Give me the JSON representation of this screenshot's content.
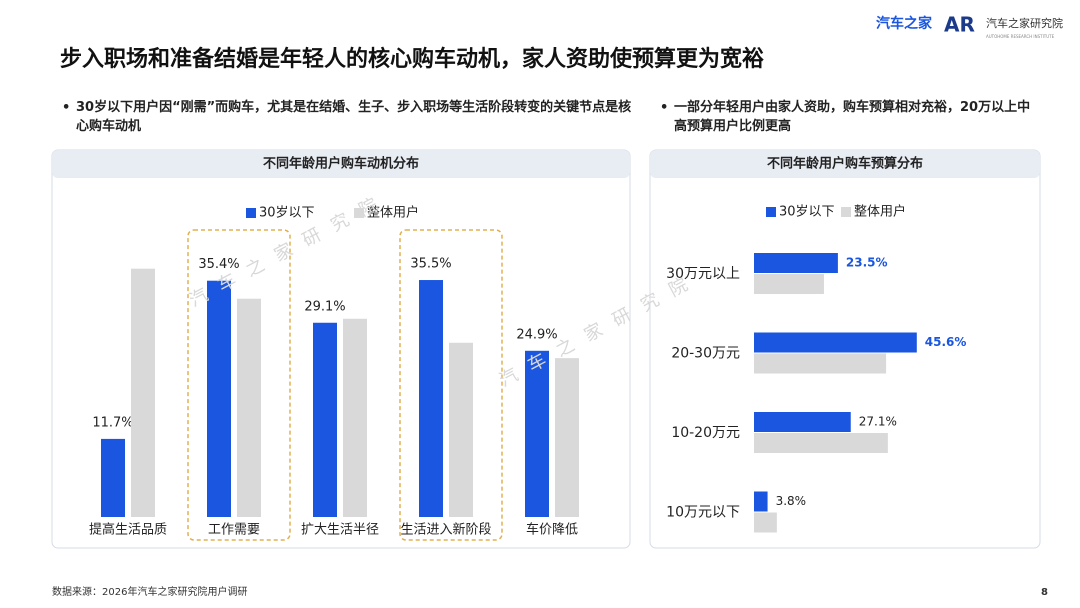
{
  "header": {
    "title": "步入职场和准备结婚是年轻人的核心购车动机，家人资助使预算更为宽裕",
    "logo": "汽车之家",
    "institute": "汽车之家研究院",
    "institute_en": "AUTOHOME RESEARCH INSTITUTE"
  },
  "bullets": [
    "30岁以下用户因“刚需”而购车，尤其是在结婚、生子、步入职场等生活阶段转变的关键节点是核心购车动机",
    "一部分年轻用户由家人资助，购车预算相对充裕，20万以上中高预算用户比例更高"
  ],
  "watermark": "汽车之家研究院",
  "chart_data": [
    {
      "type": "bar",
      "title": "不同年龄用户购车动机分布",
      "categories": [
        "提高生活品质",
        "工作需要",
        "扩大生活半径",
        "生活进入新阶段",
        "车价降低"
      ],
      "series": [
        {
          "name": "30岁以下",
          "color": "#1a56e0",
          "values": [
            11.7,
            35.4,
            29.1,
            35.5,
            24.9
          ],
          "value_labels": [
            "11.7%",
            "35.4%",
            "29.1%",
            "35.5%",
            "24.9%"
          ]
        },
        {
          "name": "整体用户",
          "color": "#d9d9d9",
          "values": [
            37.2,
            32.7,
            29.7,
            26.1,
            23.8
          ]
        }
      ],
      "ylim": [
        0,
        40
      ]
    },
    {
      "type": "barh",
      "title": "不同年龄用户购车预算分布",
      "categories": [
        "30万元以上",
        "20-30万元",
        "10-20万元",
        "10万元以下"
      ],
      "series": [
        {
          "name": "30岁以下",
          "color": "#1a56e0",
          "values": [
            23.5,
            45.6,
            27.1,
            3.8
          ],
          "value_labels": [
            "23.5%",
            "45.6%",
            "27.1%",
            "3.8%"
          ]
        },
        {
          "name": "整体用户",
          "color": "#d9d9d9",
          "values": [
            19.6,
            37.0,
            37.5,
            6.4
          ]
        }
      ],
      "xlim": [
        0,
        50
      ]
    }
  ],
  "footer": {
    "source": "数据来源：2026年汽车之家研究院用户调研",
    "page": "8"
  }
}
